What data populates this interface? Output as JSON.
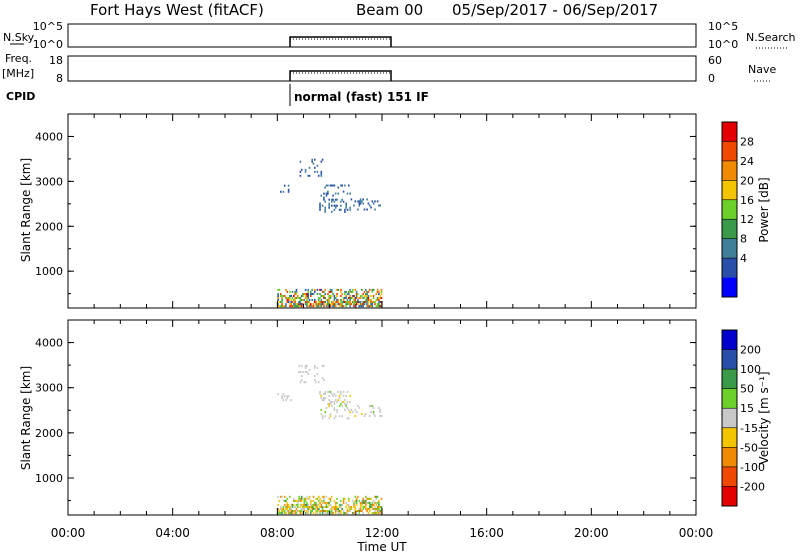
{
  "header": {
    "station": "Fort Hays West (fitACF)",
    "beam": "Beam 00",
    "dates": "05/Sep/2017 - 06/Sep/2017"
  },
  "strips": {
    "nsky_label": "N.Sky",
    "nsky_ticks": [
      "10^5",
      "10^0"
    ],
    "nsearch_label": "N.Search",
    "nsearch_ticks": [
      "10^5",
      "10^0"
    ],
    "freq_label": "Freq.",
    "freq_unit": "[MHz]",
    "freq_ticks": [
      "18",
      "8"
    ],
    "nave_label": "Nave",
    "nave_ticks": [
      "60",
      "0"
    ],
    "cpid_label": "CPID",
    "cpid_value": "normal (fast) 151 IF"
  },
  "colors": {
    "power": [
      "#0000ff",
      "#2a4fa8",
      "#3f7f9a",
      "#3a9a4a",
      "#6bd12a",
      "#f2c500",
      "#f08a00",
      "#f04800",
      "#e40000"
    ],
    "velocity": [
      "#e40000",
      "#f04800",
      "#f08a00",
      "#f2c500",
      "#c8c8c8",
      "#6bd12a",
      "#3a9a4a",
      "#2a4fa8",
      "#0000cc"
    ]
  },
  "chart_data": [
    {
      "type": "heatmap",
      "parameter": "power",
      "ylabel": "Slant Range [km]",
      "ylim": [
        180,
        4500
      ],
      "xlim": [
        0,
        24
      ],
      "yticks": [
        "1000",
        "2000",
        "3000",
        "4000"
      ],
      "xticks": [
        "00:00",
        "04:00",
        "08:00",
        "12:00",
        "16:00",
        "20:00",
        "00:00"
      ],
      "colorbar_label": "Power [dB]",
      "colorbar_ticks": [
        "4",
        "8",
        "12",
        "16",
        "20",
        "24",
        "28"
      ],
      "colorbar_range": [
        0,
        32
      ],
      "data_time_range": [
        8,
        12
      ],
      "regions": [
        {
          "t0": 8.0,
          "t1": 12.0,
          "r0": 200,
          "r1": 600,
          "value_range": [
            4,
            30
          ]
        },
        {
          "t0": 8.0,
          "t1": 8.6,
          "r0": 2700,
          "r1": 2900,
          "value_range": [
            4,
            10
          ]
        },
        {
          "t0": 8.8,
          "t1": 9.8,
          "r0": 3100,
          "r1": 3500,
          "value_range": [
            4,
            10
          ]
        },
        {
          "t0": 9.6,
          "t1": 10.8,
          "r0": 2300,
          "r1": 2900,
          "value_range": [
            4,
            10
          ]
        },
        {
          "t0": 10.8,
          "t1": 12.0,
          "r0": 2350,
          "r1": 2600,
          "value_range": [
            4,
            10
          ]
        }
      ]
    },
    {
      "type": "heatmap",
      "parameter": "velocity",
      "ylabel": "Slant Range [km]",
      "xlabel": "Time UT",
      "ylim": [
        180,
        4500
      ],
      "xlim": [
        0,
        24
      ],
      "yticks": [
        "1000",
        "2000",
        "3000",
        "4000"
      ],
      "xticks": [
        "00:00",
        "04:00",
        "08:00",
        "12:00",
        "16:00",
        "20:00",
        "00:00"
      ],
      "colorbar_label": "Velocity [m s⁻¹]",
      "colorbar_ticks": [
        "200",
        "100",
        "50",
        "15",
        "-15",
        "-50",
        "-100",
        "-200"
      ],
      "data_time_range": [
        8,
        12
      ],
      "regions": [
        {
          "t0": 8.0,
          "t1": 12.0,
          "r0": 200,
          "r1": 600,
          "value_range": [
            -80,
            60
          ]
        },
        {
          "t0": 8.0,
          "t1": 8.6,
          "r0": 2700,
          "r1": 2900,
          "value_range": [
            -15,
            15
          ]
        },
        {
          "t0": 8.8,
          "t1": 9.8,
          "r0": 3100,
          "r1": 3500,
          "value_range": [
            -15,
            15
          ]
        },
        {
          "t0": 9.6,
          "t1": 10.8,
          "r0": 2300,
          "r1": 2900,
          "value_range": [
            -20,
            20
          ]
        },
        {
          "t0": 10.8,
          "t1": 12.0,
          "r0": 2350,
          "r1": 2600,
          "value_range": [
            -20,
            20
          ]
        }
      ]
    }
  ]
}
